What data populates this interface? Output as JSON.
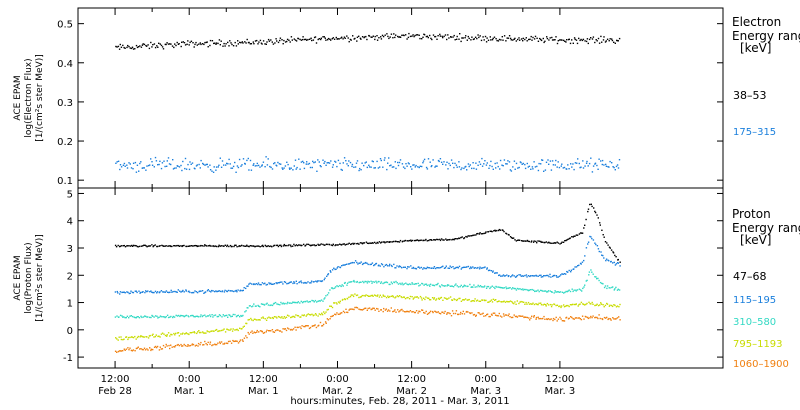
{
  "chart_data": [
    {
      "type": "scatter",
      "panel": "electron",
      "ylabel_lines": [
        "ACE EPAM",
        "log(Electron Flux)",
        "[1/(cm²s ster MeV)]"
      ],
      "yticks": [
        "0.1",
        "0.2",
        "0.3",
        "0.4",
        "0.5"
      ],
      "ylim": [
        0.08,
        0.54
      ],
      "legend_title": [
        "Electron",
        "Energy range",
        "[keV]"
      ],
      "series": [
        {
          "name": "38–53",
          "color": "#000000",
          "x_days": [
            0.0,
            0.5,
            1.0,
            1.5,
            2.0,
            2.5,
            3.0,
            3.4
          ],
          "values": [
            0.44,
            0.45,
            0.455,
            0.465,
            0.47,
            0.465,
            0.46,
            0.46
          ],
          "noise": 0.012
        },
        {
          "name": "175–315",
          "color": "#1a7fdc",
          "x_days": [
            0.0,
            0.5,
            1.0,
            1.5,
            2.0,
            2.5,
            3.0,
            3.4
          ],
          "values": [
            0.14,
            0.14,
            0.14,
            0.14,
            0.14,
            0.14,
            0.14,
            0.14
          ],
          "noise": 0.025
        }
      ]
    },
    {
      "type": "scatter",
      "panel": "proton",
      "ylabel_lines": [
        "ACE EPAM",
        "log(Proton Flux)",
        "[1/(cm²s ster MeV)]"
      ],
      "yticks": [
        "-1",
        "0",
        "1",
        "2",
        "3",
        "4",
        "5"
      ],
      "ylim": [
        -1.4,
        5.2
      ],
      "legend_title": [
        "Proton",
        "Energy range",
        "[keV]"
      ],
      "series": [
        {
          "name": "47–68",
          "color": "#000000",
          "x_days": [
            0.0,
            1.0,
            1.5,
            2.0,
            2.3,
            2.5,
            2.6,
            2.7,
            3.0,
            3.15,
            3.2,
            3.25,
            3.3,
            3.4
          ],
          "values": [
            3.1,
            3.1,
            3.15,
            3.3,
            3.35,
            3.6,
            3.7,
            3.3,
            3.2,
            3.6,
            4.7,
            4.2,
            3.3,
            2.5
          ],
          "noise": 0.05
        },
        {
          "name": "115–195",
          "color": "#1a7fdc",
          "x_days": [
            0.0,
            0.85,
            0.9,
            1.4,
            1.45,
            1.6,
            2.0,
            2.5,
            2.6,
            3.0,
            3.15,
            3.2,
            3.3,
            3.4
          ],
          "values": [
            1.4,
            1.45,
            1.7,
            1.8,
            2.2,
            2.5,
            2.3,
            2.3,
            2.0,
            2.0,
            2.5,
            3.5,
            2.6,
            2.4
          ],
          "noise": 0.08
        },
        {
          "name": "310–580",
          "color": "#33d9c4",
          "x_days": [
            0.0,
            0.85,
            0.9,
            1.4,
            1.45,
            1.6,
            2.0,
            2.5,
            3.0,
            3.15,
            3.2,
            3.3,
            3.4
          ],
          "values": [
            0.5,
            0.55,
            0.9,
            1.1,
            1.5,
            1.8,
            1.7,
            1.6,
            1.4,
            1.5,
            2.2,
            1.6,
            1.5
          ],
          "noise": 0.08
        },
        {
          "name": "795–1193",
          "color": "#c8dc00",
          "x_days": [
            0.0,
            0.85,
            0.9,
            1.4,
            1.45,
            1.6,
            2.0,
            2.5,
            3.0,
            3.2,
            3.4
          ],
          "values": [
            -0.3,
            0.05,
            0.4,
            0.6,
            0.9,
            1.3,
            1.2,
            1.1,
            0.9,
            1.0,
            0.9
          ],
          "noise": 0.1
        },
        {
          "name": "1060–1900",
          "color": "#f08010",
          "x_days": [
            0.0,
            0.85,
            0.9,
            1.4,
            1.45,
            1.6,
            2.0,
            2.5,
            3.0,
            3.2,
            3.4
          ],
          "values": [
            -0.75,
            -0.4,
            -0.1,
            0.2,
            0.5,
            0.8,
            0.7,
            0.6,
            0.4,
            0.5,
            0.4
          ],
          "noise": 0.12
        }
      ]
    }
  ],
  "x_axis": {
    "range_days": [
      -0.25,
      4.1
    ],
    "ticks": [
      {
        "day": 0.0,
        "time": "12:00",
        "date": "Feb 28"
      },
      {
        "day": 0.5,
        "time": "0:00",
        "date": "Mar. 1"
      },
      {
        "day": 1.0,
        "time": "12:00",
        "date": "Mar. 1"
      },
      {
        "day": 1.5,
        "time": "0:00",
        "date": "Mar. 2"
      },
      {
        "day": 2.0,
        "time": "12:00",
        "date": "Mar. 2"
      },
      {
        "day": 2.5,
        "time": "0:00",
        "date": "Mar. 3"
      },
      {
        "day": 3.0,
        "time": "12:00",
        "date": "Mar. 3"
      }
    ],
    "title": "hours:minutes, Feb. 28, 2011 - Mar. 3, 2011"
  }
}
